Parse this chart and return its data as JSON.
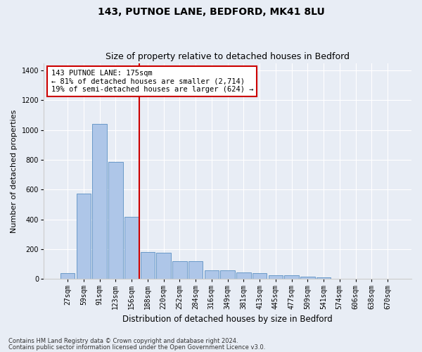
{
  "title": "143, PUTNOE LANE, BEDFORD, MK41 8LU",
  "subtitle": "Size of property relative to detached houses in Bedford",
  "xlabel": "Distribution of detached houses by size in Bedford",
  "ylabel": "Number of detached properties",
  "categories": [
    "27sqm",
    "59sqm",
    "91sqm",
    "123sqm",
    "156sqm",
    "188sqm",
    "220sqm",
    "252sqm",
    "284sqm",
    "316sqm",
    "349sqm",
    "381sqm",
    "413sqm",
    "445sqm",
    "477sqm",
    "509sqm",
    "541sqm",
    "574sqm",
    "606sqm",
    "638sqm",
    "670sqm"
  ],
  "values": [
    40,
    575,
    1040,
    785,
    420,
    180,
    175,
    120,
    120,
    60,
    60,
    45,
    40,
    25,
    25,
    15,
    10,
    0,
    0,
    0,
    0
  ],
  "bar_color": "#aec6e8",
  "bar_edge_color": "#5a8fc2",
  "vline_color": "#cc0000",
  "annotation_text": "143 PUTNOE LANE: 175sqm\n← 81% of detached houses are smaller (2,714)\n19% of semi-detached houses are larger (624) →",
  "annotation_box_color": "#ffffff",
  "annotation_box_edge_color": "#cc0000",
  "ylim": [
    0,
    1450
  ],
  "yticks": [
    0,
    200,
    400,
    600,
    800,
    1000,
    1200,
    1400
  ],
  "background_color": "#e8edf5",
  "plot_background_color": "#e8edf5",
  "footer_line1": "Contains HM Land Registry data © Crown copyright and database right 2024.",
  "footer_line2": "Contains public sector information licensed under the Open Government Licence v3.0.",
  "title_fontsize": 10,
  "subtitle_fontsize": 9,
  "tick_fontsize": 7,
  "ylabel_fontsize": 8,
  "xlabel_fontsize": 8.5,
  "annotation_fontsize": 7.5,
  "footer_fontsize": 6
}
